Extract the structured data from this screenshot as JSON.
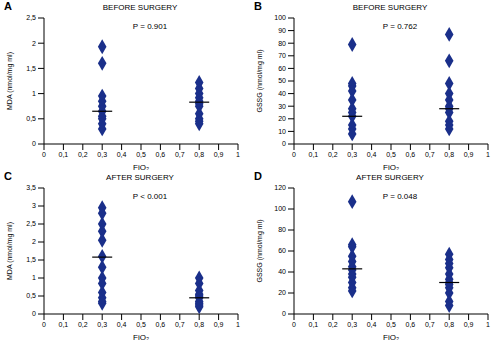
{
  "chart_data": [
    {
      "type": "scatter",
      "panel": "A",
      "title": "BEFORE SURGERY",
      "annotation": "P = 0.901",
      "x_label": "FiO₂",
      "y_label": "MDA (nmol/mg ml)",
      "color": "#1a2f8a",
      "marker": "diamond",
      "x": [
        0.3,
        0.3,
        0.3,
        0.3,
        0.3,
        0.3,
        0.3,
        0.3,
        0.3,
        0.3,
        0.8,
        0.8,
        0.8,
        0.8,
        0.8,
        0.8,
        0.8,
        0.8,
        0.8,
        0.8,
        0.8
      ],
      "values": [
        1.93,
        1.6,
        0.95,
        0.85,
        0.75,
        0.65,
        0.55,
        0.5,
        0.4,
        0.3,
        1.22,
        1.1,
        1.0,
        0.92,
        0.85,
        0.8,
        0.75,
        0.6,
        0.5,
        0.45,
        0.4
      ],
      "medians": {
        "x": [
          0.3,
          0.8
        ],
        "values": [
          0.65,
          0.83
        ]
      },
      "xlim": [
        0,
        1
      ],
      "xticks": [
        0,
        {
          "value": 0.1,
          "label": "0,1"
        },
        {
          "value": 0.2,
          "label": "0,2"
        },
        {
          "value": 0.3,
          "label": "0,3"
        },
        {
          "value": 0.4,
          "label": "0,4"
        },
        {
          "value": 0.5,
          "label": "0,5"
        },
        {
          "value": 0.6,
          "label": "0,6"
        },
        {
          "value": 0.7,
          "label": "0,7"
        },
        {
          "value": 0.8,
          "label": "0,8"
        },
        {
          "value": 0.9,
          "label": "0,9"
        },
        1
      ],
      "ylim": [
        0,
        2.5
      ],
      "yticks": [
        0,
        {
          "value": 0.5,
          "label": "0,5"
        },
        1,
        {
          "value": 1.5,
          "label": "1,5"
        },
        2,
        {
          "value": 2.5,
          "label": "2,5"
        }
      ]
    },
    {
      "type": "scatter",
      "panel": "B",
      "title": "BEFORE SURGERY",
      "annotation": "P = 0.762",
      "x_label": "FiO₂",
      "y_label": "GSSG (nmol/mg ml)",
      "color": "#1a2f8a",
      "marker": "diamond",
      "x": [
        0.3,
        0.3,
        0.3,
        0.3,
        0.3,
        0.3,
        0.3,
        0.3,
        0.3,
        0.3,
        0.3,
        0.8,
        0.8,
        0.8,
        0.8,
        0.8,
        0.8,
        0.8,
        0.8,
        0.8,
        0.8,
        0.8
      ],
      "values": [
        79,
        48,
        46,
        42,
        35,
        28,
        25,
        22,
        15,
        12,
        8,
        87,
        66,
        48,
        40,
        35,
        30,
        28,
        25,
        18,
        15,
        12
      ],
      "medians": {
        "x": [
          0.3,
          0.8
        ],
        "values": [
          22,
          28
        ]
      },
      "xlim": [
        0,
        1
      ],
      "xticks": [
        0,
        {
          "value": 0.1,
          "label": "0,1"
        },
        {
          "value": 0.2,
          "label": "0,2"
        },
        {
          "value": 0.3,
          "label": "0,3"
        },
        {
          "value": 0.4,
          "label": "0,4"
        },
        {
          "value": 0.5,
          "label": "0,5"
        },
        {
          "value": 0.6,
          "label": "0,6"
        },
        {
          "value": 0.7,
          "label": "0,7"
        },
        {
          "value": 0.8,
          "label": "0,8"
        },
        {
          "value": 0.9,
          "label": "0,9"
        },
        1
      ],
      "ylim": [
        0,
        100
      ],
      "yticks": [
        0,
        10,
        20,
        30,
        40,
        50,
        60,
        70,
        80,
        90,
        100
      ]
    },
    {
      "type": "scatter",
      "panel": "C",
      "title": "AFTER SURGERY",
      "annotation": "P < 0.001",
      "x_label": "FiO₂",
      "y_label": "MDA (nmol/mg ml)",
      "color": "#1a2f8a",
      "marker": "diamond",
      "x": [
        0.3,
        0.3,
        0.3,
        0.3,
        0.3,
        0.3,
        0.3,
        0.3,
        0.3,
        0.3,
        0.3,
        0.3,
        0.3,
        0.8,
        0.8,
        0.8,
        0.8,
        0.8,
        0.8,
        0.8,
        0.8,
        0.8,
        0.8
      ],
      "values": [
        2.95,
        2.8,
        2.5,
        2.3,
        2.05,
        1.6,
        1.3,
        1.0,
        0.85,
        0.6,
        0.45,
        0.35,
        0.3,
        1.0,
        0.85,
        0.65,
        0.55,
        0.5,
        0.45,
        0.35,
        0.3,
        0.25,
        0.2
      ],
      "medians": {
        "x": [
          0.3,
          0.8
        ],
        "values": [
          1.58,
          0.45
        ]
      },
      "xlim": [
        0,
        1
      ],
      "xticks": [
        0,
        {
          "value": 0.1,
          "label": "0,1"
        },
        {
          "value": 0.2,
          "label": "0,2"
        },
        {
          "value": 0.3,
          "label": "0,3"
        },
        {
          "value": 0.4,
          "label": "0,4"
        },
        {
          "value": 0.5,
          "label": "0,5"
        },
        {
          "value": 0.6,
          "label": "0,6"
        },
        {
          "value": 0.7,
          "label": "0,7"
        },
        {
          "value": 0.8,
          "label": "0,8"
        },
        {
          "value": 0.9,
          "label": "0,9"
        },
        1
      ],
      "ylim": [
        0,
        3.5
      ],
      "yticks": [
        0,
        {
          "value": 0.5,
          "label": "0,5"
        },
        1,
        {
          "value": 1.5,
          "label": "1,5"
        },
        2,
        {
          "value": 2.5,
          "label": "2,5"
        },
        3,
        {
          "value": 3.5,
          "label": "3,5"
        }
      ]
    },
    {
      "type": "scatter",
      "panel": "D",
      "title": "AFTER SURGERY",
      "annotation": "P = 0.048",
      "x_label": "FiO₂",
      "y_label": "GSSG (nmol/mg ml)",
      "color": "#1a2f8a",
      "marker": "diamond",
      "x": [
        0.3,
        0.3,
        0.3,
        0.3,
        0.3,
        0.3,
        0.3,
        0.3,
        0.3,
        0.3,
        0.3,
        0.3,
        0.8,
        0.8,
        0.8,
        0.8,
        0.8,
        0.8,
        0.8,
        0.8,
        0.8,
        0.8,
        0.8,
        0.8
      ],
      "values": [
        107,
        66,
        64,
        55,
        50,
        45,
        42,
        38,
        35,
        30,
        25,
        22,
        57,
        52,
        48,
        44,
        38,
        33,
        30,
        28,
        25,
        20,
        12,
        8
      ],
      "medians": {
        "x": [
          0.3,
          0.8
        ],
        "values": [
          43,
          30
        ]
      },
      "xlim": [
        0,
        1
      ],
      "xticks": [
        0,
        {
          "value": 0.1,
          "label": "0,1"
        },
        {
          "value": 0.2,
          "label": "0,2"
        },
        {
          "value": 0.3,
          "label": "0,3"
        },
        {
          "value": 0.4,
          "label": "0,4"
        },
        {
          "value": 0.5,
          "label": "0,5"
        },
        {
          "value": 0.6,
          "label": "0,6"
        },
        {
          "value": 0.7,
          "label": "0,7"
        },
        {
          "value": 0.8,
          "label": "0,8"
        },
        {
          "value": 0.9,
          "label": "0,9"
        },
        1
      ],
      "ylim": [
        0,
        120
      ],
      "yticks": [
        0,
        20,
        40,
        60,
        80,
        100,
        120
      ]
    }
  ]
}
